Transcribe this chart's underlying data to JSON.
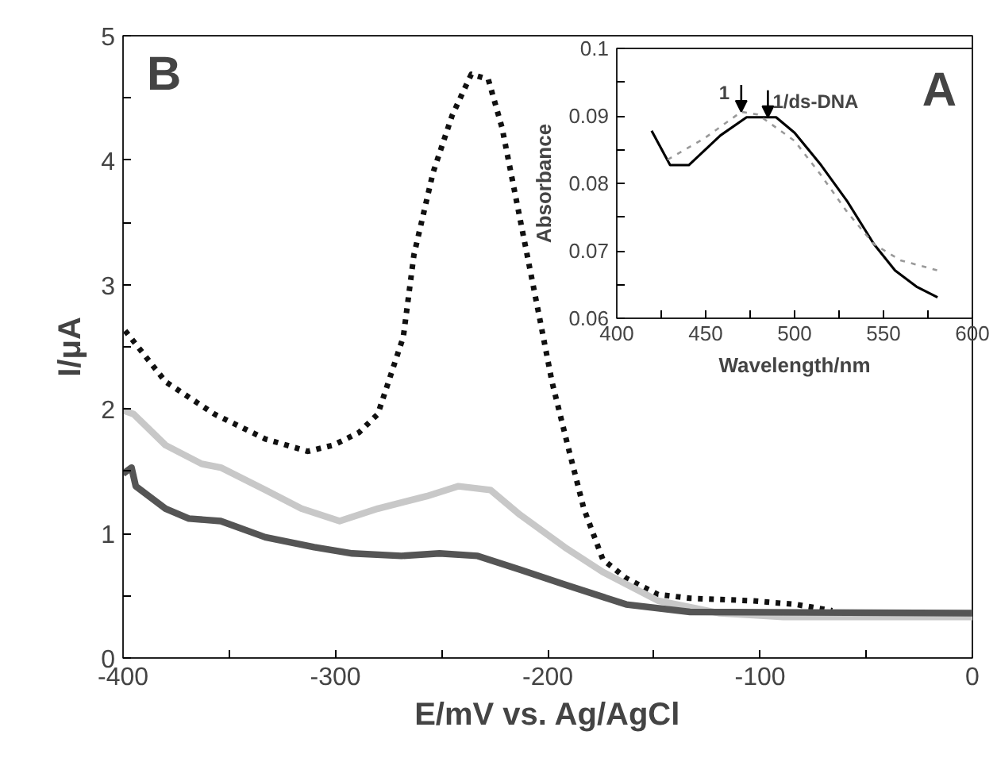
{
  "chart_data": [
    {
      "type": "line",
      "xlabel": "E/mV vs. Ag/AgCl",
      "ylabel": "I/μA",
      "annotations": [
        "B"
      ],
      "xlim": [
        -400,
        0
      ],
      "ylim": [
        0,
        5
      ],
      "xticks": [
        -400,
        {
          "value": -350,
          "label": null
        },
        -300,
        {
          "value": -250,
          "label": null
        },
        -200,
        {
          "value": -150,
          "label": null
        },
        -100,
        {
          "value": -50,
          "label": null
        },
        0
      ],
      "yticks": [
        0,
        {
          "value": 0.5,
          "label": null
        },
        1,
        {
          "value": 1.5,
          "label": null
        },
        2,
        {
          "value": 2.5,
          "label": null
        },
        3,
        {
          "value": 3.5,
          "label": null
        },
        4,
        {
          "value": 4.5,
          "label": null
        },
        5
      ],
      "grid": false,
      "series": [
        {
          "color": "#111111",
          "line_style": "dotted",
          "x": [
            -399,
            -380,
            -357,
            -333,
            -313,
            -301,
            -289,
            -280,
            -268,
            -263,
            -254,
            -245,
            -236,
            -228,
            -221.5,
            -209.7,
            -203.8,
            -198,
            -190.6,
            -183,
            -174,
            -163,
            -148,
            -133,
            -104,
            -83,
            -66
          ],
          "values": [
            2.63,
            2.22,
            1.96,
            1.76,
            1.66,
            1.71,
            1.81,
            1.96,
            2.58,
            3.24,
            3.9,
            4.36,
            4.69,
            4.65,
            4.26,
            3.24,
            2.73,
            2.22,
            1.71,
            1.2,
            0.79,
            0.64,
            0.51,
            0.48,
            0.46,
            0.43,
            0.38
          ]
        },
        {
          "color": "#c8c8c8",
          "line_style": "solid",
          "x": [
            -400,
            -395,
            -380,
            -363,
            -354,
            -333,
            -316,
            -298,
            -280,
            -257,
            -242,
            -227,
            -213,
            -192,
            -174,
            -148,
            -119,
            -89,
            0
          ],
          "values": [
            1.99,
            1.96,
            1.71,
            1.56,
            1.53,
            1.35,
            1.2,
            1.1,
            1.2,
            1.3,
            1.38,
            1.35,
            1.15,
            0.89,
            0.69,
            0.46,
            0.36,
            0.33,
            0.33
          ]
        },
        {
          "color": "#555555",
          "line_style": "solid",
          "x": [
            -400,
            -396,
            -394,
            -380,
            -369,
            -354,
            -333,
            -310,
            -292,
            -269,
            -251,
            -233,
            -213,
            -192,
            -163,
            -133,
            0
          ],
          "values": [
            1.48,
            1.53,
            1.38,
            1.2,
            1.12,
            1.1,
            0.97,
            0.89,
            0.84,
            0.82,
            0.84,
            0.82,
            0.71,
            0.59,
            0.43,
            0.37,
            0.36
          ]
        }
      ]
    },
    {
      "type": "line",
      "xlabel": "Wavelength/nm",
      "ylabel": "Absorbance",
      "annotations": [
        "A",
        {
          "text": "1",
          "x": 470,
          "y": 0.0906
        },
        {
          "text": "1/ds-DNA",
          "x": 485,
          "y": 0.0898
        }
      ],
      "xlim": [
        400,
        600
      ],
      "ylim": [
        0.06,
        0.1
      ],
      "xticks": [
        400,
        {
          "value": 425,
          "label": null
        },
        450,
        {
          "value": 475,
          "label": null
        },
        500,
        {
          "value": 525,
          "label": null
        },
        550,
        {
          "value": 575,
          "label": null
        },
        600
      ],
      "yticks": [
        0.06,
        {
          "value": 0.065,
          "label": null
        },
        0.07,
        {
          "value": 0.075,
          "label": null
        },
        0.08,
        {
          "value": 0.085,
          "label": null
        },
        0.09,
        {
          "value": 0.095,
          "label": null
        },
        0.1
      ],
      "grid": false,
      "series": [
        {
          "color": "#000000",
          "line_style": "solid",
          "x": [
            419.6,
            430,
            440.5,
            458.3,
            473,
            489.6,
            500,
            514.9,
            529.7,
            544.6,
            556.5,
            568.5,
            580.4
          ],
          "values": [
            0.0878,
            0.0827,
            0.0827,
            0.0871,
            0.0898,
            0.0898,
            0.0875,
            0.0827,
            0.0773,
            0.071,
            0.0671,
            0.0647,
            0.0631
          ]
        },
        {
          "color": "#999999",
          "line_style": "dotted",
          "x": [
            428.6,
            449.4,
            470,
            479.3,
            500,
            514.9,
            529.7,
            544.6,
            559.5,
            580.4
          ],
          "values": [
            0.0835,
            0.0867,
            0.0906,
            0.0902,
            0.0863,
            0.0812,
            0.0757,
            0.071,
            0.0686,
            0.0671
          ]
        }
      ]
    }
  ]
}
